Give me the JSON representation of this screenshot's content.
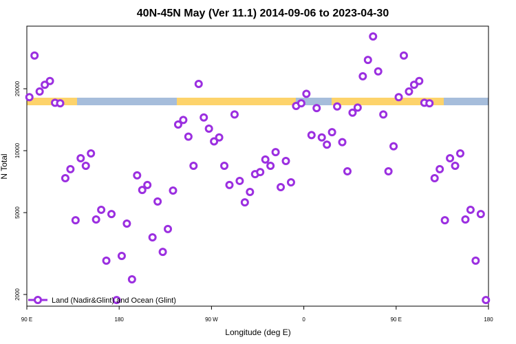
{
  "chart_data": {
    "type": "scatter",
    "title": "40N-45N May (Ver 11.1)   2014-09-06 to 2023-04-30",
    "x_label": "Longitude (deg E)",
    "y_label": "N Total",
    "log_y": true,
    "legend": "bottom-left",
    "xlim": [
      90,
      540
    ],
    "ylim": [
      1755,
      40300
    ],
    "xticks": [
      {
        "value": 90,
        "label": "90 E"
      },
      180,
      {
        "value": 270,
        "label": "90 W"
      },
      {
        "value": 360,
        "label": "0"
      },
      {
        "value": 450,
        "label": "90 E"
      },
      {
        "value": 540,
        "label": "180"
      }
    ],
    "yticks": [
      2000,
      5000,
      10000,
      20000
    ],
    "series": [
      {
        "name": "Land (Nadir&Glint) and Ocean (Glint)",
        "color": "#9b2fe0",
        "x": [
          92.5,
          97.5,
          102.5,
          107.5,
          112.5,
          117.5,
          122.5,
          127.5,
          132.5,
          137.5,
          142.5,
          147.5,
          152.5,
          157.5,
          162.5,
          167.5,
          172.5,
          177.5,
          182.5,
          187.5,
          192.5,
          197.5,
          202.5,
          207.5,
          212.5,
          217.5,
          222.5,
          227.5,
          232.5,
          237.5,
          242.5,
          247.5,
          252.5,
          257.5,
          262.5,
          267.5,
          272.5,
          277.5,
          282.5,
          287.5,
          292.5,
          297.5,
          302.5,
          307.5,
          312.5,
          317.5,
          322.5,
          327.5,
          332.5,
          337.5,
          342.5,
          347.5,
          352.5,
          357.5,
          362.5,
          367.5,
          372.5,
          377.5,
          382.5,
          387.5,
          392.5,
          397.5,
          402.5,
          407.5,
          412.5,
          417.5,
          422.5,
          427.5,
          432.5,
          437.5,
          442.5,
          447.5,
          452.5,
          457.5,
          462.5,
          467.5,
          472.5,
          477.5,
          482.5,
          487.5,
          492.5,
          497.5,
          502.5,
          507.5,
          512.5,
          517.5,
          522.5,
          527.5,
          532.5,
          537.5
        ],
        "values": [
          18200,
          29000,
          19400,
          20900,
          21800,
          17100,
          17000,
          7350,
          8130,
          4590,
          9190,
          8440,
          9700,
          4630,
          5160,
          2920,
          4920,
          1880,
          3080,
          4420,
          2370,
          7590,
          6440,
          6810,
          3790,
          5660,
          3220,
          4160,
          6400,
          13400,
          14100,
          11700,
          8440,
          21100,
          14500,
          12800,
          11100,
          11600,
          8440,
          6810,
          15000,
          7130,
          5610,
          6300,
          7690,
          7870,
          9060,
          8440,
          9840,
          6650,
          8910,
          7020,
          16500,
          17000,
          18900,
          11900,
          16100,
          11600,
          10700,
          12300,
          16400,
          11000,
          7940,
          15300,
          16200,
          23000,
          27600,
          35900,
          24300,
          15000,
          7940,
          10500,
          18200,
          29000,
          19400,
          20900,
          21800,
          17100,
          17000,
          7350,
          8130,
          4590,
          9190,
          8440,
          9700,
          4630,
          5160,
          2920,
          4920,
          1880
        ]
      }
    ]
  }
}
